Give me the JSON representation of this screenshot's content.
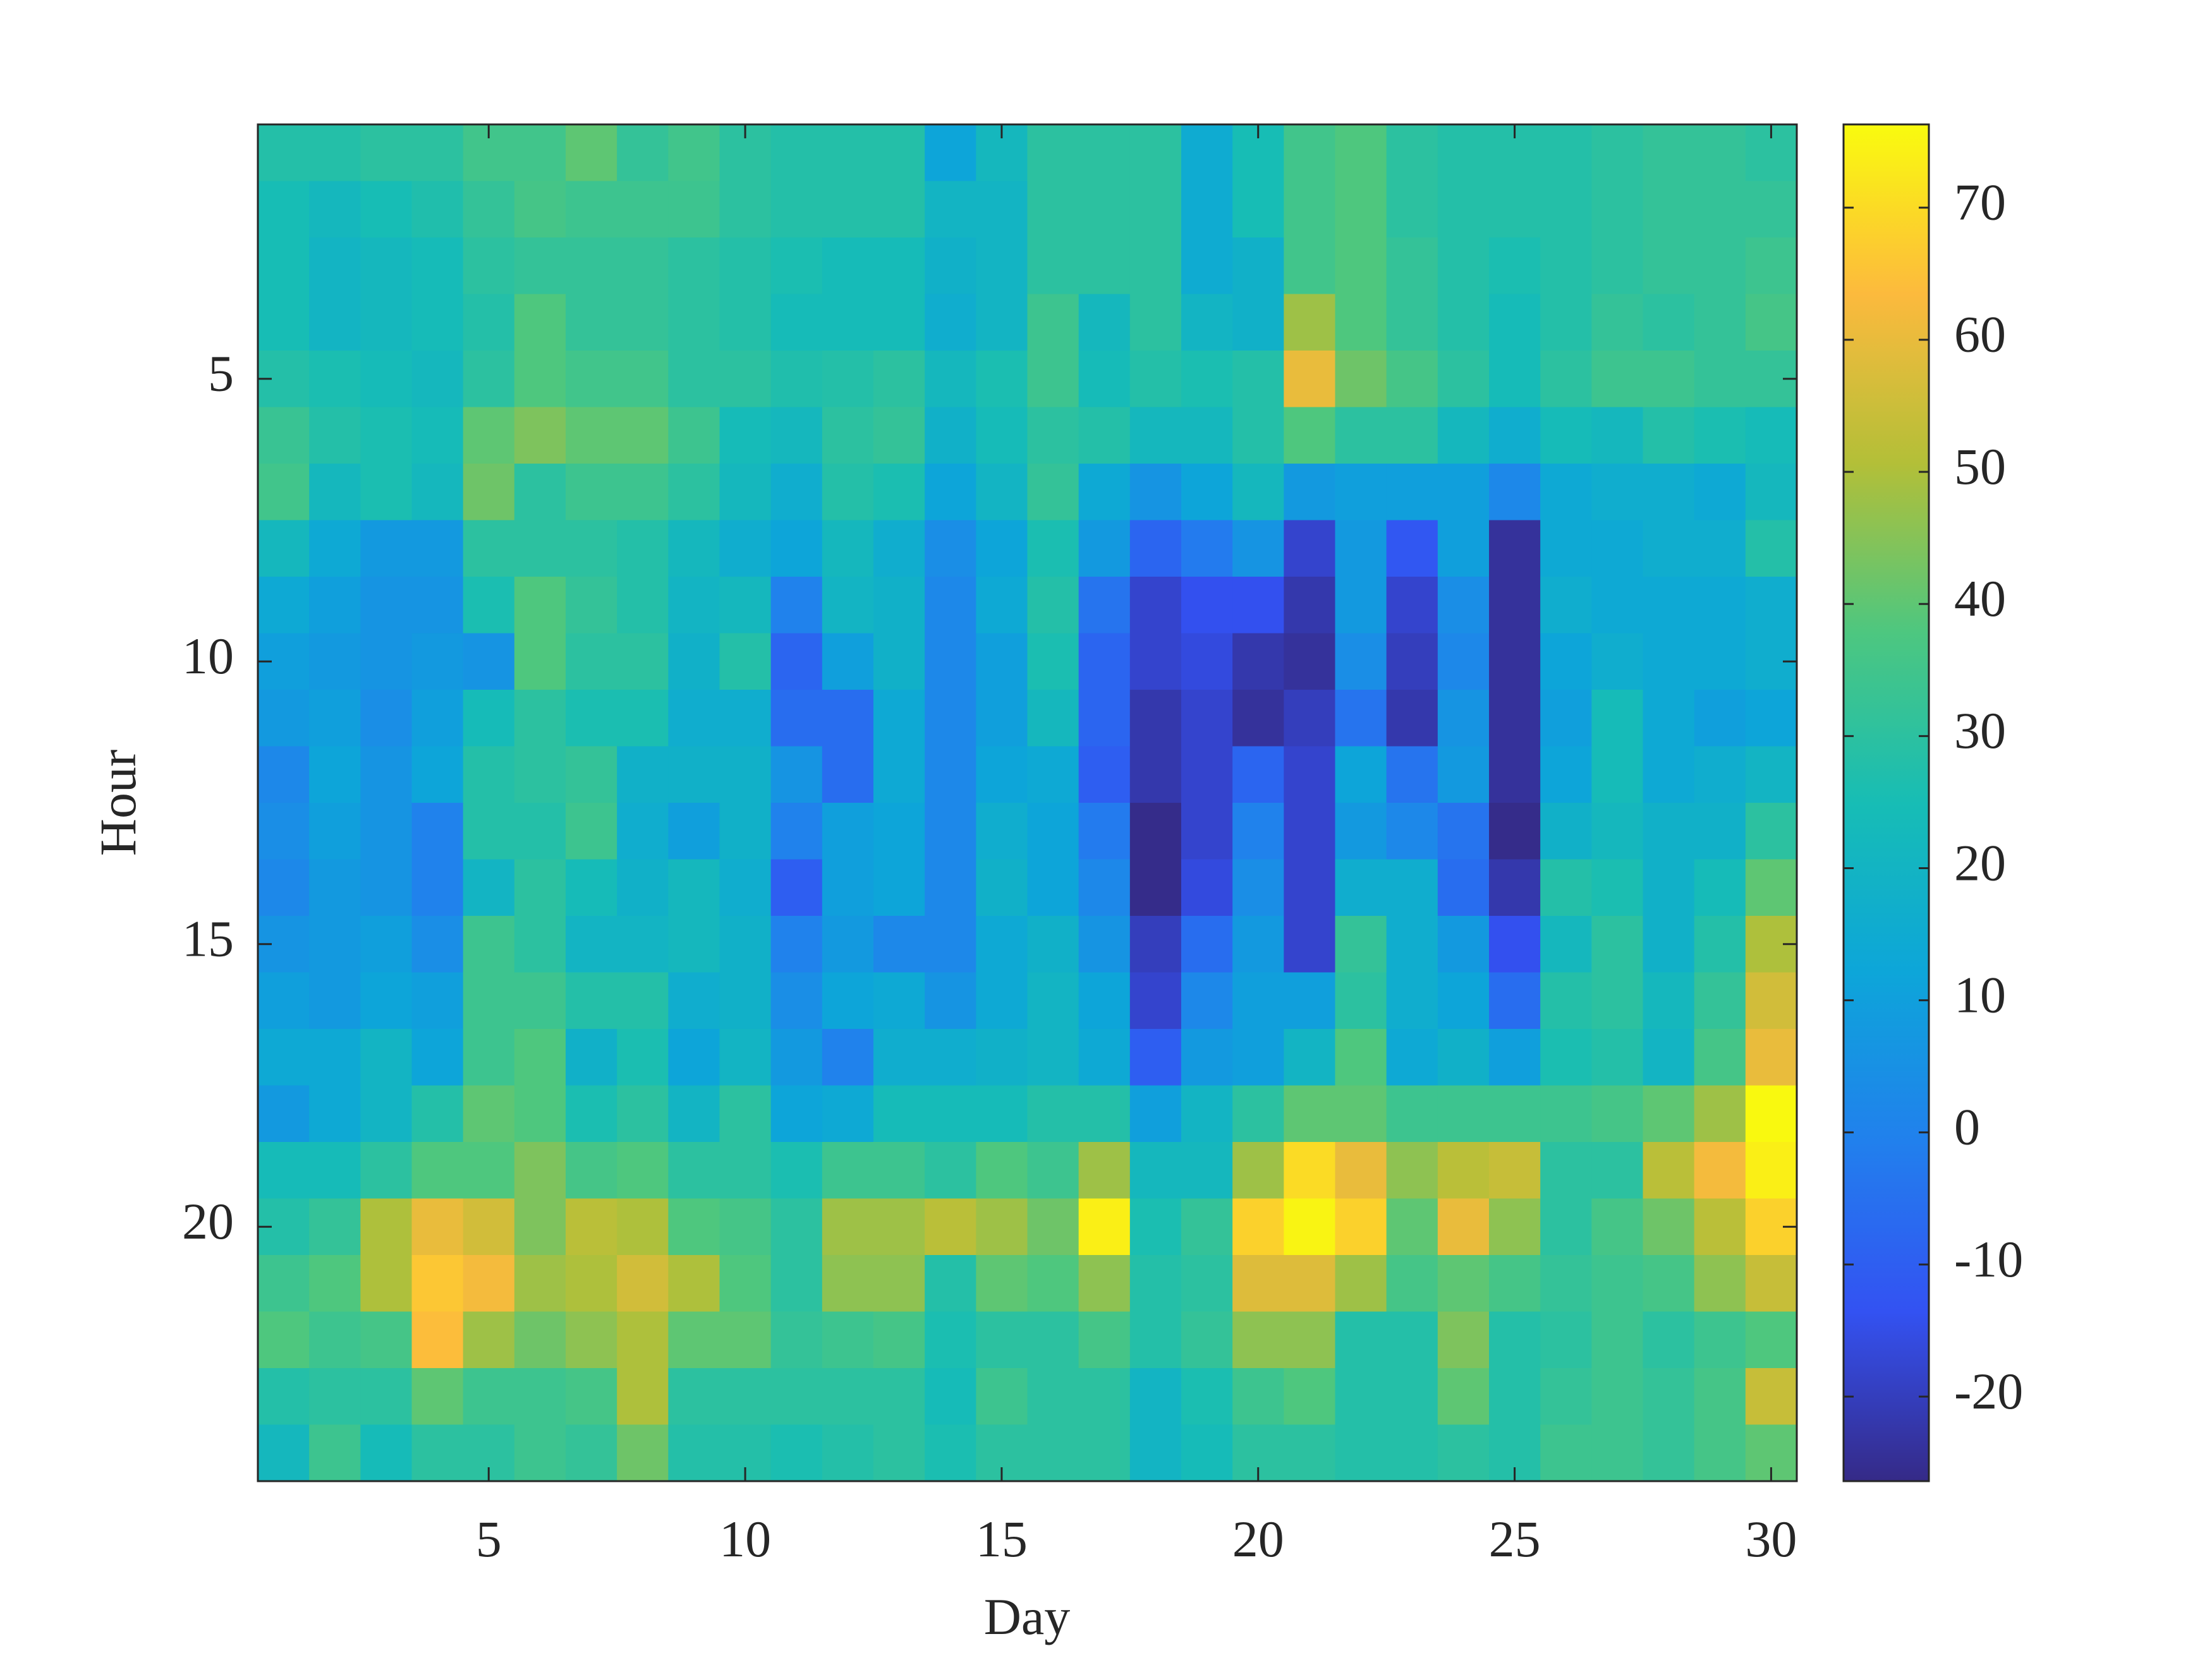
{
  "chart_data": {
    "type": "heatmap",
    "xlabel": "Day",
    "ylabel": "Hour",
    "x": [
      1,
      2,
      3,
      4,
      5,
      6,
      7,
      8,
      9,
      10,
      11,
      12,
      13,
      14,
      15,
      16,
      17,
      18,
      19,
      20,
      21,
      22,
      23,
      24,
      25,
      26,
      27,
      28,
      29,
      30
    ],
    "y": [
      1,
      2,
      3,
      4,
      5,
      6,
      7,
      8,
      9,
      10,
      11,
      12,
      13,
      14,
      15,
      16,
      17,
      18,
      19,
      20,
      21,
      22,
      23,
      24
    ],
    "xlim": [
      0.5,
      30.5
    ],
    "xticks": [
      5,
      10,
      15,
      20,
      25,
      30
    ],
    "ylim": [
      0.5,
      24.5
    ],
    "yticks": [
      5,
      10,
      15,
      20
    ],
    "ydir": "reverse",
    "clim": [
      -26.4,
      76.3
    ],
    "cticks": [
      -20,
      -10,
      0,
      10,
      20,
      30,
      40,
      50,
      60,
      70
    ],
    "colormap": "parula",
    "z": [
      [
        28,
        28,
        30,
        30,
        35,
        35,
        40,
        32,
        35,
        30,
        28,
        28,
        28,
        12,
        22,
        30,
        30,
        30,
        15,
        25,
        35,
        38,
        30,
        28,
        28,
        28,
        30,
        32,
        32,
        30
      ],
      [
        25,
        22,
        25,
        27,
        32,
        36,
        34,
        34,
        34,
        30,
        28,
        28,
        28,
        20,
        20,
        30,
        30,
        30,
        15,
        25,
        35,
        38,
        30,
        28,
        28,
        28,
        30,
        32,
        32,
        32
      ],
      [
        25,
        20,
        22,
        24,
        30,
        32,
        32,
        32,
        30,
        28,
        26,
        24,
        24,
        18,
        20,
        30,
        30,
        30,
        15,
        18,
        35,
        38,
        32,
        28,
        26,
        28,
        30,
        32,
        32,
        34
      ],
      [
        25,
        20,
        22,
        24,
        28,
        38,
        32,
        32,
        30,
        28,
        24,
        24,
        24,
        16,
        20,
        34,
        22,
        30,
        20,
        18,
        48,
        38,
        32,
        28,
        24,
        28,
        32,
        30,
        32,
        36
      ],
      [
        28,
        26,
        24,
        22,
        30,
        38,
        35,
        35,
        30,
        30,
        27,
        28,
        30,
        22,
        26,
        34,
        24,
        28,
        26,
        28,
        60,
        42,
        36,
        30,
        24,
        30,
        34,
        34,
        32,
        32
      ],
      [
        33,
        28,
        26,
        24,
        40,
        44,
        40,
        40,
        34,
        24,
        22,
        30,
        32,
        18,
        24,
        30,
        28,
        22,
        22,
        28,
        38,
        30,
        30,
        22,
        16,
        24,
        22,
        28,
        26,
        24
      ],
      [
        35,
        22,
        26,
        22,
        42,
        30,
        34,
        34,
        30,
        22,
        16,
        28,
        26,
        12,
        20,
        32,
        14,
        6,
        12,
        22,
        8,
        10,
        10,
        10,
        2,
        14,
        16,
        16,
        14,
        22
      ],
      [
        22,
        14,
        8,
        8,
        30,
        30,
        30,
        28,
        22,
        16,
        12,
        22,
        16,
        4,
        12,
        26,
        8,
        -8,
        -2,
        6,
        -18,
        8,
        -12,
        10,
        -24,
        14,
        14,
        16,
        16,
        28
      ],
      [
        14,
        10,
        6,
        6,
        26,
        38,
        32,
        28,
        20,
        22,
        0,
        20,
        18,
        2,
        14,
        28,
        -4,
        -18,
        -14,
        -14,
        -22,
        8,
        -18,
        4,
        -24,
        16,
        14,
        14,
        14,
        16
      ],
      [
        10,
        8,
        6,
        8,
        6,
        38,
        30,
        30,
        18,
        28,
        -8,
        10,
        18,
        2,
        10,
        26,
        -8,
        -18,
        -16,
        -22,
        -24,
        4,
        -20,
        2,
        -24,
        12,
        16,
        14,
        14,
        16
      ],
      [
        8,
        10,
        4,
        10,
        24,
        30,
        26,
        26,
        16,
        16,
        -6,
        -6,
        14,
        2,
        10,
        22,
        -8,
        -22,
        -18,
        -24,
        -20,
        -4,
        -22,
        6,
        -24,
        10,
        24,
        14,
        10,
        12
      ],
      [
        2,
        12,
        6,
        12,
        28,
        30,
        32,
        18,
        18,
        18,
        6,
        -6,
        14,
        2,
        12,
        14,
        -10,
        -22,
        -18,
        -8,
        -18,
        12,
        -4,
        8,
        -24,
        12,
        24,
        14,
        16,
        20
      ],
      [
        4,
        10,
        6,
        0,
        28,
        28,
        34,
        16,
        10,
        18,
        0,
        10,
        12,
        2,
        16,
        12,
        -2,
        -26,
        -18,
        0,
        -18,
        8,
        2,
        -4,
        -26,
        18,
        22,
        18,
        18,
        30
      ],
      [
        2,
        8,
        6,
        0,
        20,
        30,
        24,
        18,
        22,
        16,
        -10,
        10,
        12,
        2,
        18,
        12,
        2,
        -26,
        -16,
        4,
        -18,
        16,
        16,
        -6,
        -22,
        28,
        26,
        18,
        24,
        40
      ],
      [
        6,
        8,
        10,
        4,
        34,
        30,
        20,
        20,
        22,
        18,
        0,
        8,
        2,
        2,
        14,
        18,
        6,
        -20,
        -6,
        8,
        -18,
        32,
        16,
        8,
        -14,
        22,
        30,
        18,
        28,
        50
      ],
      [
        10,
        8,
        12,
        10,
        34,
        34,
        28,
        28,
        16,
        18,
        4,
        12,
        14,
        6,
        14,
        20,
        12,
        -18,
        2,
        10,
        10,
        30,
        16,
        12,
        -6,
        28,
        30,
        22,
        32,
        56
      ],
      [
        14,
        14,
        20,
        12,
        34,
        38,
        18,
        26,
        12,
        20,
        8,
        0,
        16,
        16,
        18,
        20,
        14,
        -10,
        8,
        10,
        20,
        38,
        14,
        18,
        10,
        26,
        28,
        20,
        36,
        60
      ],
      [
        8,
        14,
        20,
        28,
        40,
        38,
        26,
        30,
        20,
        30,
        12,
        14,
        24,
        24,
        24,
        28,
        28,
        10,
        20,
        30,
        40,
        40,
        34,
        34,
        34,
        34,
        36,
        40,
        48,
        76
      ],
      [
        24,
        24,
        30,
        38,
        38,
        44,
        36,
        38,
        30,
        30,
        26,
        34,
        34,
        30,
        38,
        34,
        48,
        22,
        22,
        48,
        70,
        60,
        46,
        52,
        54,
        30,
        30,
        52,
        62,
        74
      ],
      [
        28,
        32,
        50,
        60,
        56,
        44,
        52,
        50,
        38,
        36,
        30,
        48,
        48,
        52,
        48,
        42,
        74,
        26,
        32,
        68,
        75,
        68,
        40,
        60,
        46,
        30,
        36,
        42,
        52,
        68
      ],
      [
        34,
        38,
        50,
        66,
        62,
        48,
        50,
        56,
        50,
        38,
        30,
        46,
        46,
        28,
        40,
        38,
        46,
        28,
        30,
        58,
        58,
        48,
        36,
        40,
        36,
        32,
        34,
        36,
        46,
        54
      ],
      [
        38,
        34,
        36,
        64,
        48,
        42,
        46,
        50,
        40,
        40,
        32,
        34,
        36,
        26,
        30,
        30,
        36,
        28,
        32,
        46,
        46,
        28,
        28,
        44,
        28,
        30,
        34,
        30,
        34,
        38
      ],
      [
        28,
        30,
        30,
        40,
        34,
        34,
        36,
        50,
        30,
        30,
        30,
        30,
        30,
        24,
        34,
        30,
        30,
        20,
        26,
        34,
        38,
        28,
        28,
        40,
        28,
        32,
        34,
        32,
        36,
        54
      ],
      [
        22,
        34,
        24,
        30,
        30,
        34,
        32,
        42,
        28,
        28,
        26,
        28,
        30,
        26,
        30,
        30,
        30,
        20,
        24,
        30,
        30,
        28,
        28,
        30,
        28,
        34,
        34,
        32,
        36,
        40
      ]
    ]
  }
}
